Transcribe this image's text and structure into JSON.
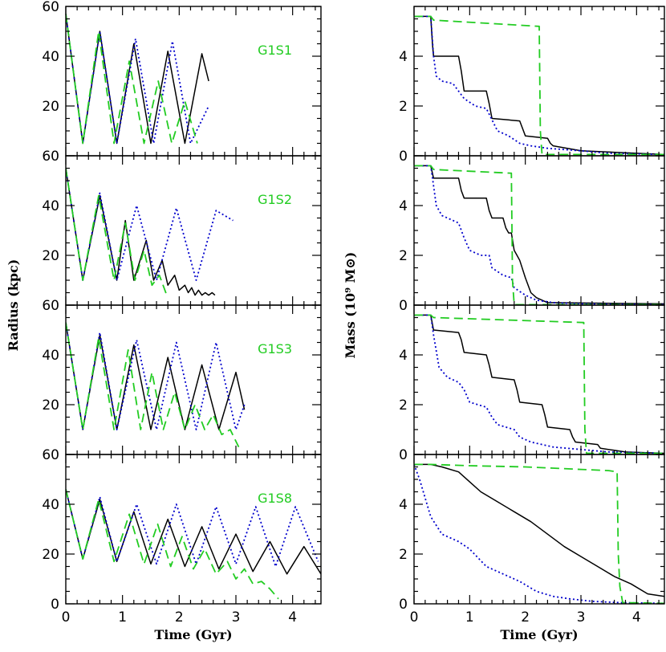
{
  "colors": {
    "solid": "#000000",
    "dotted": "#0000cc",
    "dashed": "#22cc22"
  },
  "chart_data": [
    {
      "type": "line",
      "column": "radius",
      "xlabel": "Time (Gyr)",
      "ylabel": "Radius (kpc)",
      "xlim": [
        0,
        4.5
      ],
      "ylim": [
        0,
        60
      ],
      "xticks": [
        "0",
        "1",
        "2",
        "3",
        "4"
      ],
      "yticks": [
        "20",
        "40",
        "60"
      ],
      "yticks_bottom": [
        "0",
        "20",
        "40",
        "60"
      ],
      "panels": [
        {
          "label": "G1S1",
          "series": [
            {
              "style": "solid",
              "x": [
                0,
                0.3,
                0.6,
                0.9,
                1.2,
                1.5,
                1.8,
                2.1,
                2.4,
                2.52
              ],
              "y": [
                57,
                5,
                50,
                5,
                45,
                5,
                42,
                5,
                41,
                30
              ]
            },
            {
              "style": "dotted",
              "x": [
                0,
                0.3,
                0.6,
                0.9,
                1.23,
                1.55,
                1.88,
                2.2,
                2.52
              ],
              "y": [
                57,
                5,
                50,
                5,
                47,
                5,
                46,
                5,
                20
              ]
            },
            {
              "style": "dashed",
              "x": [
                0,
                0.3,
                0.58,
                0.85,
                1.12,
                1.38,
                1.63,
                1.87,
                2.1,
                2.32
              ],
              "y": [
                57,
                5,
                50,
                5,
                38,
                5,
                30,
                5,
                22,
                5
              ]
            }
          ]
        },
        {
          "label": "G1S2",
          "series": [
            {
              "style": "solid",
              "x": [
                0,
                0.3,
                0.6,
                0.9,
                1.05,
                1.2,
                1.42,
                1.55,
                1.7,
                1.8,
                1.92,
                2.0,
                2.1,
                2.16,
                2.22,
                2.28,
                2.34,
                2.4,
                2.46,
                2.52,
                2.58,
                2.63
              ],
              "y": [
                55,
                10,
                44,
                10,
                34,
                10,
                26,
                10,
                18,
                8,
                12,
                6,
                8,
                5,
                7,
                4,
                6,
                4,
                5,
                4,
                5,
                4
              ]
            },
            {
              "style": "dotted",
              "x": [
                0,
                0.3,
                0.6,
                0.9,
                1.25,
                1.6,
                1.95,
                2.3,
                2.65,
                2.95
              ],
              "y": [
                55,
                10,
                45,
                10,
                40,
                10,
                39,
                10,
                38,
                34
              ]
            },
            {
              "style": "dashed",
              "x": [
                0,
                0.3,
                0.58,
                0.85,
                1.05,
                1.22,
                1.38,
                1.52,
                1.65,
                1.78
              ],
              "y": [
                55,
                10,
                44,
                10,
                33,
                10,
                22,
                8,
                12,
                4
              ]
            }
          ]
        },
        {
          "label": "G1S3",
          "series": [
            {
              "style": "solid",
              "x": [
                0,
                0.3,
                0.6,
                0.9,
                1.2,
                1.5,
                1.8,
                2.1,
                2.4,
                2.7,
                3.0,
                3.15
              ],
              "y": [
                53,
                10,
                48,
                10,
                44,
                10,
                39,
                10,
                36,
                10,
                33,
                18
              ]
            },
            {
              "style": "dotted",
              "x": [
                0,
                0.3,
                0.6,
                0.9,
                1.25,
                1.6,
                1.95,
                2.3,
                2.65,
                3.0,
                3.15
              ],
              "y": [
                53,
                10,
                49,
                10,
                46,
                10,
                45,
                10,
                45,
                10,
                20
              ]
            },
            {
              "style": "dashed",
              "x": [
                0,
                0.3,
                0.58,
                0.85,
                1.1,
                1.32,
                1.52,
                1.72,
                1.92,
                2.1,
                2.28,
                2.45,
                2.6,
                2.75,
                2.9,
                3.05
              ],
              "y": [
                53,
                10,
                47,
                10,
                42,
                10,
                33,
                10,
                25,
                10,
                20,
                10,
                16,
                8,
                10,
                3
              ]
            }
          ]
        },
        {
          "label": "G1S8",
          "series": [
            {
              "style": "solid",
              "x": [
                0,
                0.3,
                0.6,
                0.9,
                1.2,
                1.5,
                1.8,
                2.1,
                2.4,
                2.7,
                3.0,
                3.3,
                3.6,
                3.9,
                4.2,
                4.5
              ],
              "y": [
                46,
                18,
                42,
                17,
                37,
                16,
                34,
                15,
                31,
                14,
                28,
                13,
                25,
                12,
                23,
                12
              ]
            },
            {
              "style": "dotted",
              "x": [
                0,
                0.3,
                0.6,
                0.9,
                1.25,
                1.6,
                1.95,
                2.3,
                2.65,
                3.0,
                3.35,
                3.7,
                4.05,
                4.45
              ],
              "y": [
                46,
                18,
                43,
                17,
                40,
                16,
                40,
                16,
                39,
                16,
                39,
                15,
                39,
                17
              ]
            },
            {
              "style": "dashed",
              "x": [
                0,
                0.3,
                0.58,
                0.85,
                1.12,
                1.38,
                1.62,
                1.85,
                2.05,
                2.25,
                2.45,
                2.65,
                2.85,
                3.0,
                3.15,
                3.3,
                3.45,
                3.6,
                3.75
              ],
              "y": [
                46,
                18,
                42,
                17,
                36,
                16,
                32,
                15,
                27,
                14,
                22,
                12,
                17,
                10,
                14,
                8,
                9,
                6,
                2
              ]
            }
          ]
        }
      ]
    },
    {
      "type": "line",
      "column": "mass",
      "xlabel": "Time (Gyr)",
      "ylabel": "Mass (10⁹ M⊙)",
      "xlim": [
        0,
        4.5
      ],
      "ylim": [
        0,
        6
      ],
      "xticks": [
        "0",
        "1",
        "2",
        "3",
        "4"
      ],
      "yticks": [
        "0",
        "2",
        "4"
      ],
      "panels": [
        {
          "label": "",
          "series": [
            {
              "style": "solid",
              "x": [
                0,
                0.3,
                0.33,
                0.35,
                0.8,
                0.85,
                0.9,
                1.3,
                1.35,
                1.4,
                1.9,
                1.95,
                2.0,
                2.4,
                2.45,
                2.5,
                3.0,
                4.5
              ],
              "y": [
                5.6,
                5.6,
                4.5,
                4.0,
                4.0,
                3.4,
                2.6,
                2.6,
                2.1,
                1.5,
                1.4,
                1.1,
                0.8,
                0.7,
                0.5,
                0.4,
                0.2,
                0.05
              ]
            },
            {
              "style": "dotted",
              "x": [
                0,
                0.3,
                0.35,
                0.4,
                0.5,
                0.7,
                0.9,
                1.1,
                1.3,
                1.5,
                1.7,
                1.9,
                2.1,
                2.4,
                3.0,
                3.5,
                4.5
              ],
              "y": [
                5.6,
                5.6,
                4.0,
                3.2,
                3.0,
                2.9,
                2.3,
                2.0,
                1.9,
                1.0,
                0.8,
                0.5,
                0.4,
                0.3,
                0.2,
                0.1,
                0.05
              ]
            },
            {
              "style": "dashed",
              "x": [
                0,
                0.3,
                0.35,
                2.25,
                2.27,
                2.3,
                4.5
              ],
              "y": [
                5.6,
                5.6,
                5.45,
                5.2,
                1.0,
                0.05,
                0.05
              ]
            }
          ]
        },
        {
          "label": "",
          "series": [
            {
              "style": "solid",
              "x": [
                0,
                0.3,
                0.35,
                0.8,
                0.85,
                0.9,
                1.3,
                1.35,
                1.4,
                1.6,
                1.65,
                1.7,
                1.75,
                1.8,
                1.85,
                1.9,
                2.0,
                2.1,
                2.2,
                2.4,
                4.5
              ],
              "y": [
                5.6,
                5.6,
                5.1,
                5.1,
                4.6,
                4.3,
                4.3,
                3.8,
                3.5,
                3.5,
                3.1,
                2.9,
                2.9,
                2.2,
                2.0,
                1.8,
                1.1,
                0.5,
                0.3,
                0.1,
                0.05
              ]
            },
            {
              "style": "dotted",
              "x": [
                0,
                0.3,
                0.35,
                0.4,
                0.5,
                0.6,
                0.8,
                0.9,
                1.0,
                1.2,
                1.35,
                1.4,
                1.6,
                1.75,
                1.8,
                2.0,
                2.2,
                2.5,
                3.0,
                4.5
              ],
              "y": [
                5.6,
                5.6,
                4.8,
                4.0,
                3.6,
                3.5,
                3.3,
                2.7,
                2.2,
                2.0,
                2.0,
                1.5,
                1.2,
                1.1,
                0.7,
                0.4,
                0.2,
                0.1,
                0.05,
                0.02
              ]
            },
            {
              "style": "dashed",
              "x": [
                0,
                0.3,
                0.35,
                1.75,
                1.77,
                1.8,
                4.5
              ],
              "y": [
                5.6,
                5.6,
                5.45,
                5.3,
                1.0,
                0.02,
                0.02
              ]
            }
          ]
        },
        {
          "label": "",
          "series": [
            {
              "style": "solid",
              "x": [
                0,
                0.3,
                0.35,
                0.8,
                0.85,
                0.9,
                1.3,
                1.35,
                1.4,
                1.8,
                1.85,
                1.9,
                2.3,
                2.35,
                2.4,
                2.8,
                2.85,
                2.9,
                3.3,
                3.35,
                3.8,
                4.5
              ],
              "y": [
                5.6,
                5.6,
                5.0,
                4.9,
                4.6,
                4.1,
                4.0,
                3.6,
                3.1,
                3.0,
                2.6,
                2.1,
                2.0,
                1.6,
                1.1,
                1.0,
                0.7,
                0.5,
                0.4,
                0.25,
                0.1,
                0.05
              ]
            },
            {
              "style": "dotted",
              "x": [
                0,
                0.3,
                0.35,
                0.45,
                0.6,
                0.8,
                0.9,
                1.0,
                1.3,
                1.4,
                1.5,
                1.8,
                1.9,
                2.1,
                2.5,
                3.0,
                3.5,
                4.5
              ],
              "y": [
                5.6,
                5.6,
                4.8,
                3.5,
                3.1,
                2.9,
                2.6,
                2.1,
                1.9,
                1.5,
                1.2,
                1.0,
                0.7,
                0.5,
                0.3,
                0.2,
                0.1,
                0.05
              ]
            },
            {
              "style": "dashed",
              "x": [
                0,
                0.3,
                0.35,
                3.05,
                3.07,
                3.1,
                4.5
              ],
              "y": [
                5.6,
                5.6,
                5.5,
                5.3,
                1.0,
                0.05,
                0.05
              ]
            }
          ]
        },
        {
          "label": "",
          "series": [
            {
              "style": "solid",
              "x": [
                0,
                0.3,
                0.5,
                0.8,
                1.0,
                1.2,
                1.5,
                1.8,
                2.1,
                2.4,
                2.7,
                3.0,
                3.3,
                3.6,
                3.9,
                4.2,
                4.5
              ],
              "y": [
                5.6,
                5.6,
                5.5,
                5.3,
                4.9,
                4.5,
                4.1,
                3.7,
                3.3,
                2.8,
                2.3,
                1.9,
                1.5,
                1.1,
                0.8,
                0.4,
                0.3
              ]
            },
            {
              "style": "dotted",
              "x": [
                0,
                0.1,
                0.3,
                0.5,
                0.8,
                1.0,
                1.3,
                1.6,
                1.9,
                2.2,
                2.5,
                2.8,
                3.2,
                3.7,
                4.5
              ],
              "y": [
                5.6,
                5.0,
                3.5,
                2.8,
                2.5,
                2.2,
                1.5,
                1.2,
                0.9,
                0.5,
                0.3,
                0.2,
                0.1,
                0.05,
                0.02
              ]
            },
            {
              "style": "dashed",
              "x": [
                0,
                0.3,
                1.0,
                2.0,
                3.0,
                3.5,
                3.65,
                3.67,
                3.7,
                3.75,
                4.5
              ],
              "y": [
                5.6,
                5.6,
                5.55,
                5.5,
                5.4,
                5.35,
                5.3,
                2.0,
                0.7,
                0.05,
                0.02
              ]
            }
          ]
        }
      ]
    }
  ]
}
